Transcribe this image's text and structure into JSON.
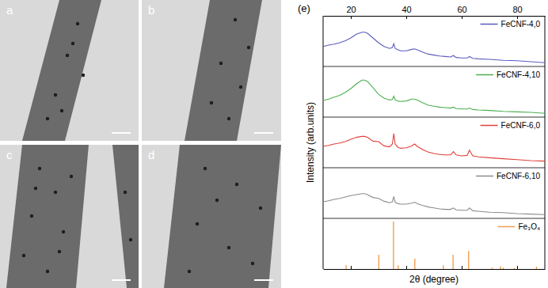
{
  "panels": [
    {
      "label": "a"
    },
    {
      "label": "b"
    },
    {
      "label": "c"
    },
    {
      "label": "d"
    }
  ],
  "chart_data": {
    "type": "line",
    "title": "(e)",
    "xlabel": "2θ (degree)",
    "ylabel": "Intensity (arb.units)",
    "xlim": [
      10,
      90
    ],
    "xticks": [
      20,
      40,
      60,
      80
    ],
    "ylim": [
      0,
      1
    ],
    "tick_labels": "x",
    "grid": false,
    "legend": "upper right",
    "series": [
      {
        "name": "FeCNF-4,0",
        "color": "#5b5bbf",
        "type": "line",
        "x": [
          10,
          12,
          14,
          16,
          18,
          20,
          22,
          24,
          25,
          26,
          28,
          30,
          32,
          34,
          35,
          35.5,
          36,
          37,
          38,
          40,
          42,
          43,
          44,
          46,
          48,
          50,
          52,
          54,
          56,
          57,
          58,
          60,
          62,
          62.8,
          64,
          66,
          70,
          75,
          80,
          85,
          90
        ],
        "values": [
          0.42,
          0.45,
          0.47,
          0.5,
          0.54,
          0.6,
          0.68,
          0.72,
          0.72,
          0.7,
          0.6,
          0.5,
          0.42,
          0.38,
          0.4,
          0.48,
          0.38,
          0.35,
          0.33,
          0.33,
          0.36,
          0.37,
          0.35,
          0.3,
          0.26,
          0.24,
          0.22,
          0.21,
          0.2,
          0.23,
          0.19,
          0.18,
          0.18,
          0.21,
          0.17,
          0.16,
          0.15,
          0.13,
          0.12,
          0.1,
          0.08
        ]
      },
      {
        "name": "FeCNF-4,10",
        "color": "#4caf50",
        "type": "line",
        "x": [
          10,
          12,
          14,
          16,
          18,
          20,
          22,
          24,
          25,
          26,
          28,
          30,
          32,
          34,
          35,
          35.5,
          36,
          37,
          38,
          40,
          42,
          43,
          44,
          46,
          48,
          50,
          52,
          54,
          56,
          57,
          58,
          60,
          62,
          62.8,
          64,
          66,
          70,
          75,
          80,
          85,
          90
        ],
        "values": [
          0.35,
          0.38,
          0.42,
          0.46,
          0.52,
          0.6,
          0.7,
          0.78,
          0.78,
          0.75,
          0.62,
          0.48,
          0.4,
          0.36,
          0.37,
          0.44,
          0.36,
          0.34,
          0.33,
          0.34,
          0.38,
          0.38,
          0.36,
          0.3,
          0.25,
          0.23,
          0.21,
          0.2,
          0.19,
          0.21,
          0.18,
          0.17,
          0.17,
          0.19,
          0.16,
          0.15,
          0.14,
          0.12,
          0.11,
          0.1,
          0.08
        ]
      },
      {
        "name": "FeCNF-6,0",
        "color": "#e0403a",
        "type": "line",
        "x": [
          10,
          12,
          14,
          16,
          18,
          20,
          22,
          24,
          25,
          26,
          28,
          30,
          32,
          34,
          35,
          35.5,
          36,
          37,
          38,
          40,
          42,
          43,
          44,
          46,
          48,
          50,
          52,
          54,
          56,
          57,
          58,
          60,
          62,
          62.8,
          64,
          66,
          70,
          75,
          80,
          85,
          90
        ],
        "values": [
          0.45,
          0.47,
          0.5,
          0.52,
          0.55,
          0.6,
          0.64,
          0.66,
          0.66,
          0.64,
          0.56,
          0.55,
          0.46,
          0.44,
          0.5,
          0.72,
          0.5,
          0.43,
          0.41,
          0.42,
          0.46,
          0.5,
          0.45,
          0.38,
          0.33,
          0.3,
          0.28,
          0.27,
          0.27,
          0.34,
          0.27,
          0.25,
          0.26,
          0.37,
          0.25,
          0.23,
          0.21,
          0.19,
          0.17,
          0.15,
          0.14
        ]
      },
      {
        "name": "FeCNF-6,10",
        "color": "#8c8c8c",
        "type": "line",
        "x": [
          10,
          12,
          14,
          16,
          18,
          20,
          22,
          24,
          25,
          26,
          28,
          30,
          32,
          34,
          35,
          35.5,
          36,
          37,
          38,
          40,
          42,
          43,
          44,
          46,
          48,
          50,
          52,
          54,
          56,
          57,
          58,
          60,
          62,
          62.8,
          64,
          66,
          70,
          75,
          80,
          85,
          90
        ],
        "values": [
          0.35,
          0.37,
          0.4,
          0.42,
          0.45,
          0.48,
          0.5,
          0.52,
          0.52,
          0.5,
          0.44,
          0.42,
          0.36,
          0.33,
          0.35,
          0.46,
          0.34,
          0.31,
          0.3,
          0.3,
          0.32,
          0.34,
          0.31,
          0.27,
          0.24,
          0.22,
          0.2,
          0.19,
          0.19,
          0.22,
          0.18,
          0.17,
          0.17,
          0.22,
          0.16,
          0.15,
          0.13,
          0.12,
          0.1,
          0.09,
          0.08
        ]
      },
      {
        "name": "Fe₃O₄",
        "color": "#f0a050",
        "type": "bar",
        "x": [
          18.3,
          30.1,
          35.4,
          37.1,
          43.1,
          53.4,
          56.9,
          62.5,
          71,
          74,
          75,
          79,
          87
        ],
        "values": [
          0.08,
          0.3,
          1.0,
          0.08,
          0.22,
          0.08,
          0.3,
          0.38,
          0.03,
          0.06,
          0.03,
          0.02,
          0.05
        ]
      }
    ]
  }
}
